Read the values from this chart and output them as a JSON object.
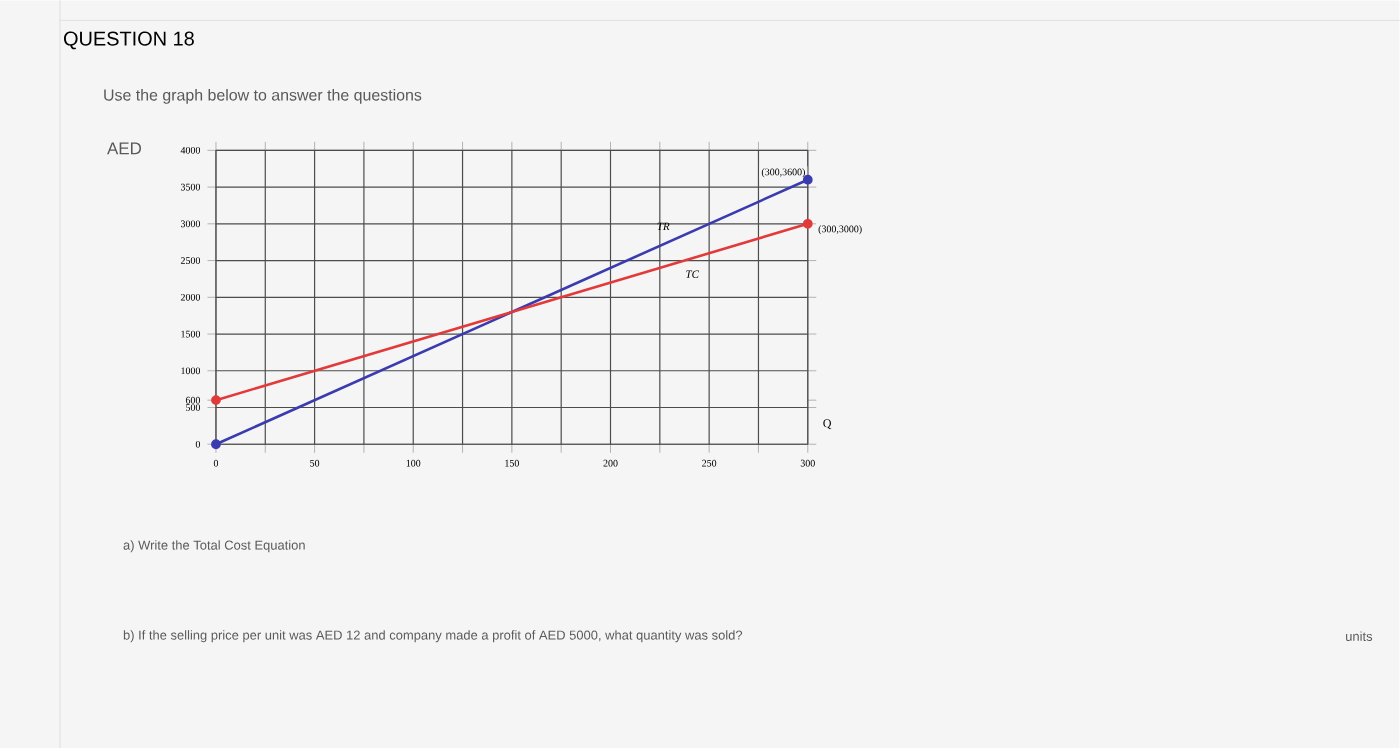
{
  "chart_data": {
    "type": "line",
    "title": "QUESTION 18",
    "subtitle": "Use the graph below to answer the questions",
    "ylabel": "AED",
    "xlabel": "Q",
    "x": [
      0,
      300
    ],
    "series": [
      {
        "name": "TR",
        "color": "#3b3bb0",
        "values": [
          0,
          3600
        ]
      },
      {
        "name": "TC",
        "color": "#e23a3a",
        "values": [
          600,
          3000
        ]
      }
    ],
    "xlim": [
      0,
      300
    ],
    "ylim": [
      0,
      4000
    ],
    "xticks": [
      0,
      {
        "value": 25,
        "label": null
      },
      50,
      {
        "value": 75,
        "label": null
      },
      100,
      {
        "value": 125,
        "label": null
      },
      150,
      {
        "value": 175,
        "label": null
      },
      200,
      {
        "value": 225,
        "label": null
      },
      250,
      {
        "value": 275,
        "label": null
      },
      300
    ],
    "yticks": [
      0,
      500,
      600,
      1000,
      1500,
      2000,
      2500,
      3000,
      3500,
      4000
    ],
    "grid": true,
    "marker": "circle",
    "line_style": "solid",
    "annotations": [
      {
        "text": "(300,3600)",
        "x": 300,
        "y": 3600
      },
      {
        "text": "(300,3000)",
        "x": 300,
        "y": 3000
      },
      "a) Write the Total Cost Equation",
      "b) If the selling price per unit was AED 12 and company made a profit of AED 5000, what quantity was sold?",
      "units"
    ]
  }
}
